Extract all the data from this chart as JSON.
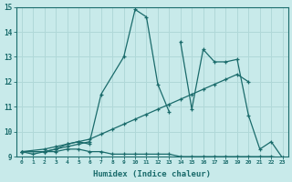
{
  "xlabel": "Humidex (Indice chaleur)",
  "background_color": "#c8eaea",
  "grid_color": "#b0d8d8",
  "line_color": "#1a6b6b",
  "xlim": [
    -0.5,
    23.5
  ],
  "ylim": [
    9,
    15
  ],
  "series": [
    {
      "segments": [
        {
          "x": [
            0,
            1,
            2,
            3,
            4,
            5,
            6,
            7,
            8,
            9,
            10,
            11,
            12,
            13,
            14,
            15,
            16,
            17,
            18,
            19,
            20,
            21,
            22,
            23
          ],
          "y": [
            9.2,
            9.1,
            9.2,
            9.2,
            9.3,
            9.3,
            9.2,
            9.2,
            9.1,
            9.1,
            9.1,
            9.1,
            9.1,
            9.1,
            9.0,
            9.0,
            9.0,
            9.0,
            9.0,
            9.0,
            9.0,
            9.0,
            9.0,
            8.95
          ]
        }
      ]
    },
    {
      "segments": [
        {
          "x": [
            0,
            2,
            3,
            4,
            5,
            6,
            7,
            8,
            9,
            10,
            11,
            12,
            13,
            14,
            15,
            16,
            17,
            18,
            19,
            20
          ],
          "y": [
            9.2,
            9.3,
            9.4,
            9.5,
            9.6,
            9.7,
            9.9,
            10.1,
            10.3,
            10.5,
            10.7,
            10.9,
            11.1,
            11.3,
            11.5,
            11.7,
            11.9,
            12.1,
            12.3,
            12.0
          ]
        }
      ]
    },
    {
      "segments": [
        {
          "x": [
            0,
            2,
            3,
            4,
            5,
            6,
            7,
            9,
            10,
            11,
            12,
            13
          ],
          "y": [
            9.2,
            9.2,
            9.3,
            9.4,
            9.5,
            9.6,
            11.5,
            13.0,
            14.9,
            14.6,
            11.9,
            10.8
          ]
        }
      ]
    },
    {
      "segments": [
        {
          "x": [
            0,
            2,
            3,
            4,
            5,
            6,
            14,
            15,
            16,
            17,
            18,
            19,
            20,
            21,
            22,
            23
          ],
          "y": [
            9.2,
            9.2,
            9.3,
            9.5,
            9.6,
            9.5,
            13.6,
            10.9,
            13.3,
            12.8,
            12.8,
            12.9,
            10.65,
            9.3,
            9.6,
            8.95
          ]
        }
      ]
    }
  ]
}
